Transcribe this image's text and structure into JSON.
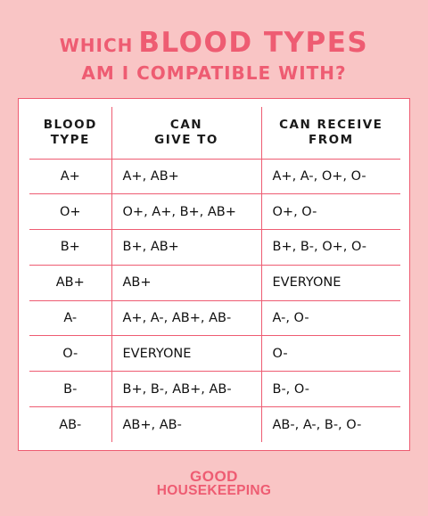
{
  "title": {
    "lead": "WHICH",
    "emphasis": "BLOOD TYPES",
    "line2": "AM I COMPATIBLE WITH?"
  },
  "table": {
    "headers": [
      [
        "BLOOD",
        "TYPE"
      ],
      [
        "CAN",
        "GIVE TO"
      ],
      [
        "CAN RECEIVE",
        "FROM"
      ]
    ],
    "rows": [
      [
        "A+",
        "A+, AB+",
        "A+, A-, O+, O-"
      ],
      [
        "O+",
        "O+, A+, B+, AB+",
        "O+, O-"
      ],
      [
        "B+",
        "B+, AB+",
        "B+, B-, O+, O-"
      ],
      [
        "AB+",
        "AB+",
        "EVERYONE"
      ],
      [
        "A-",
        "A+, A-, AB+, AB-",
        "A-, O-"
      ],
      [
        "O-",
        "EVERYONE",
        "O-"
      ],
      [
        "B-",
        "B+, B-, AB+, AB-",
        "B-, O-"
      ],
      [
        "AB-",
        "AB+, AB-",
        "AB-, A-, B-, O-"
      ]
    ]
  },
  "logo": {
    "line1": "GOOD",
    "line2": "HOUSEKEEPING"
  },
  "colors": {
    "background": "#f9c5c5",
    "accent": "#ee5c72",
    "card": "#ffffff",
    "text": "#111111"
  }
}
